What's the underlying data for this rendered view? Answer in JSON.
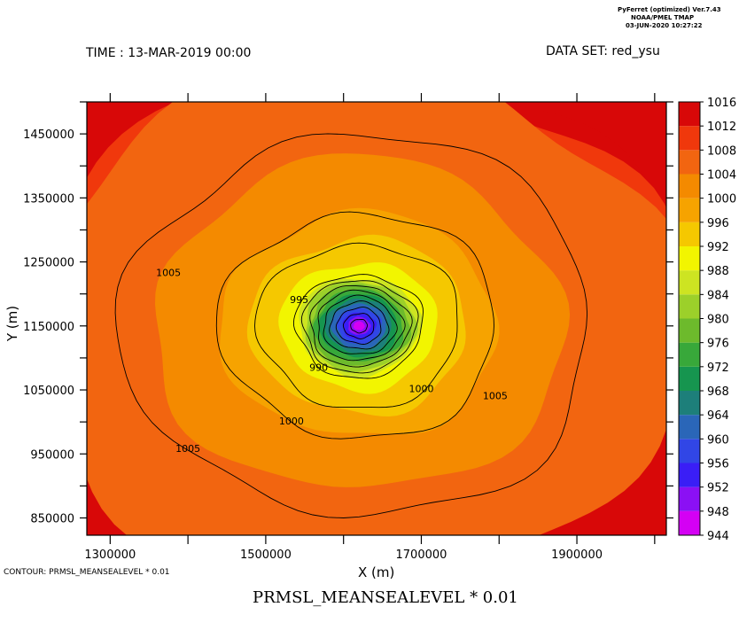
{
  "header": {
    "version": "PyFerret (optimized) Ver.7.43",
    "lab": "NOAA/PMEL TMAP",
    "date": "03-JUN-2020 10:27:22"
  },
  "time_label": "TIME : 13-MAR-2019 00:00",
  "dataset_label": "DATA SET: red_ysu",
  "contour_note": "CONTOUR: PRMSL_MEANSEALEVEL * 0.01",
  "chart_data": {
    "type": "heatmap",
    "title": "PRMSL_MEANSEALEVEL * 0.01",
    "xlabel": "X (m)",
    "ylabel": "Y (m)",
    "xlim": [
      1270000,
      2015000
    ],
    "ylim": [
      823000,
      1500000
    ],
    "x_ticks": [
      1300000,
      1500000,
      1700000,
      1900000
    ],
    "x_minor_step": 100000,
    "y_ticks": [
      850000,
      950000,
      1050000,
      1150000,
      1250000,
      1350000,
      1450000
    ],
    "y_minor_step": 50000,
    "center": {
      "x": 1620000,
      "y": 1150000
    },
    "min_value": 944,
    "colorbar": {
      "levels": [
        944,
        948,
        952,
        956,
        960,
        964,
        968,
        972,
        976,
        980,
        984,
        988,
        992,
        996,
        1000,
        1004,
        1008,
        1012,
        1016
      ],
      "colors": [
        "#d400f4",
        "#8b10f4",
        "#3a1ef6",
        "#3146e6",
        "#2a66b8",
        "#1d7f7a",
        "#16954f",
        "#38a83a",
        "#6dba2c",
        "#9cd02a",
        "#cde422",
        "#f2f500",
        "#f5c800",
        "#f6a300",
        "#f48a00",
        "#f26510",
        "#f0380c",
        "#d80808",
        "#b00008"
      ]
    },
    "contour_labels": [
      {
        "text": "1005",
        "x": 1375000,
        "y": 1232000
      },
      {
        "text": "1005",
        "x": 1400000,
        "y": 957000
      },
      {
        "text": "1005",
        "x": 1795000,
        "y": 1040000
      },
      {
        "text": "1000",
        "x": 1533000,
        "y": 1000000
      },
      {
        "text": "1000",
        "x": 1700000,
        "y": 1051000
      },
      {
        "text": "995",
        "x": 1543000,
        "y": 1190000
      },
      {
        "text": "990",
        "x": 1568000,
        "y": 1084000
      }
    ]
  }
}
